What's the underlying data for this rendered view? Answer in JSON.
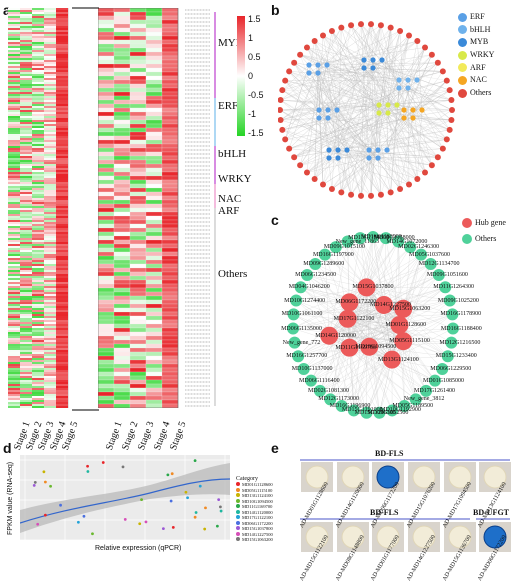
{
  "panels": {
    "a": "a",
    "b": "b",
    "c": "c",
    "d": "d",
    "e": "e"
  },
  "heatmap": {
    "stages": [
      "Stage 1",
      "Stage 2",
      "Stage 3",
      "Stage 4",
      "Stage 5"
    ],
    "families": [
      "MYB",
      "ERF",
      "bHLH",
      "WRKY",
      "NAC",
      "ARF",
      "Others"
    ],
    "colorbar_ticks": [
      "1.5",
      "1",
      "0.5",
      "0",
      "-0.5",
      "-1",
      "-1.5"
    ],
    "colors": {
      "high": "#e8252a",
      "mid": "#ffffff",
      "low": "#25d425"
    }
  },
  "network_b": {
    "legend": [
      {
        "name": "ERF",
        "color": "#5aa0e6"
      },
      {
        "name": "bHLH",
        "color": "#6fb2ec"
      },
      {
        "name": "MYB",
        "color": "#3b8ad9"
      },
      {
        "name": "WRKY",
        "color": "#d8e94a"
      },
      {
        "name": "ARF",
        "color": "#f2ea5a"
      },
      {
        "name": "NAC",
        "color": "#f5a623"
      },
      {
        "name": "Others",
        "color": "#e0483e"
      }
    ]
  },
  "network_c": {
    "legend": [
      {
        "name": "Hub gene",
        "color": "#ec5a5a"
      },
      {
        "name": "Others",
        "color": "#4fd19a"
      }
    ],
    "hub_nodes": [
      "MD01G1128600",
      "MD05G1115100",
      "MD13G1124100",
      "MD10G1094500",
      "MD11G1169700",
      "MD14G1120000",
      "MD17G1122100",
      "MD06G1172200",
      "MD15G1037800",
      "MD14G1227500",
      "MD15G1063200"
    ],
    "other_nodes": [
      "MD16G1183900",
      "MD10G1158000",
      "MD14G1072000",
      "MD02G1246300",
      "MD05G1037600",
      "MD12G1134700",
      "MD09G1051600",
      "MD11G1264300",
      "MD09G1025200",
      "MD16G1178900",
      "MD16G1188400",
      "MD12G1216500",
      "MD15G1233400",
      "MD06G1229500",
      "MD01G1085000",
      "MD17G1261400",
      "New_gene_3812",
      "MD05G1189500",
      "MD10G1192900",
      "MD09G1052500",
      "MD15G1286300",
      "MD15G1191000",
      "MD16G1196900",
      "MD12G1173000",
      "MD02G1081300",
      "MD06G1116400",
      "MD10G1137000",
      "MD16G1257700",
      "New_gene_772",
      "MD06G1135000",
      "MD10G1061100",
      "MD10G1274400",
      "MD04G1046200",
      "MD06G1234500",
      "MD09G1289600",
      "MD16G1197900",
      "MD09G1015100",
      "New_gene_11863",
      "MD13G1154300"
    ]
  },
  "scatter_d": {
    "xlabel": "Relative expression (qPCR)",
    "ylabel": "FPKM value (RNA-seq)",
    "legend_title": "Category",
    "legend_items": [
      "MD01G1128600",
      "MD05G1115100",
      "MD13G1124100",
      "MD10G1094500",
      "MD11G1169700",
      "MD14G1120000",
      "MD17G1122100",
      "MD06G1172200",
      "MD15G1037800",
      "MD14G1227500",
      "MD15G1063200"
    ],
    "x_ticks": [
      "0",
      "0.5",
      "1.0",
      "1.5",
      "2.0",
      "2.5"
    ],
    "y_ticks": [
      "0",
      "200",
      "400",
      "600",
      "800"
    ]
  },
  "y2h_e": {
    "top_header": "BD-FLS",
    "top_labels": [
      "AD-MD01G1128600",
      "AD-MD14G1120000",
      "AD-MD06G1172200",
      "AD-MD15G1076200",
      "AD-MD17G1094500",
      "AD-MD13G1124100"
    ],
    "bottom_header_left": "BD-FLS",
    "bottom_header_right": "BD-UFGT",
    "bottom_labels": [
      "AD-MD15G1122100",
      "AD-MD08G1148800",
      "AD-MD01G1177000",
      "AD-MD14G1227500",
      "AD-MD15G1136700",
      "AD-MD06G1172200"
    ]
  }
}
